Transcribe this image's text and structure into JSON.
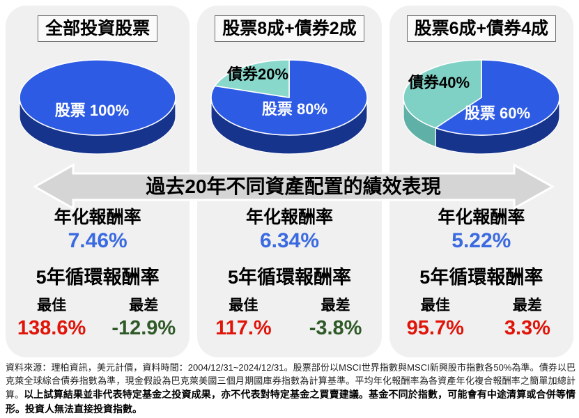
{
  "banner": {
    "label": "過去20年不同資產配置的績效表現",
    "fill": "#d5d5d5",
    "outline": "#ffffff"
  },
  "chart_data": [
    {
      "type": "pie",
      "title": "全部投資股票",
      "legend_position": "inside",
      "slices": [
        {
          "name": "股票",
          "label": "股票 100%",
          "value": 100,
          "color": "#2d5be4",
          "side_color": "#17348c",
          "label_color": "#ffffff",
          "label_x": 117,
          "label_y": 86
        }
      ],
      "stats": {
        "annualized_label": "年化報酬率",
        "annualized_value": "7.46%",
        "annualized_color": "#3a6ae0",
        "rolling_label": "5年循環報酬率",
        "best_label": "最佳",
        "worst_label": "最差",
        "best_value": "138.6%",
        "best_color": "#e01408",
        "worst_value": "-12.9%",
        "worst_color": "#2f5a28"
      }
    },
    {
      "type": "pie",
      "title": "股票8成+債券2成",
      "legend_position": "inside",
      "slices": [
        {
          "name": "股票",
          "label": "股票 80%",
          "value": 80,
          "color": "#2d5be4",
          "side_color": "#17348c",
          "label_color": "#ffffff",
          "label_x": 133,
          "label_y": 84
        },
        {
          "name": "債券",
          "label": "債券20%",
          "value": 20,
          "color": "#89d8cc",
          "side_color": "#5fb0a6",
          "label_color": "#000000",
          "label_x": 80,
          "label_y": 34
        }
      ],
      "stats": {
        "annualized_label": "年化報酬率",
        "annualized_value": "6.34%",
        "annualized_color": "#3a6ae0",
        "rolling_label": "5年循環報酬率",
        "best_label": "最佳",
        "worst_label": "最差",
        "best_value": "117.%",
        "best_color": "#e01408",
        "worst_value": "-3.8%",
        "worst_color": "#2f5a28"
      }
    },
    {
      "type": "pie",
      "title": "股票6成+債券4成",
      "legend_position": "inside",
      "slices": [
        {
          "name": "股票",
          "label": "股票 60%",
          "value": 60,
          "color": "#2d5be4",
          "side_color": "#17348c",
          "label_color": "#ffffff",
          "label_x": 148,
          "label_y": 90
        },
        {
          "name": "債券",
          "label": "債券40%",
          "value": 40,
          "color": "#7fd0c5",
          "side_color": "#5fb0a6",
          "label_color": "#000000",
          "label_x": 64,
          "label_y": 46
        }
      ],
      "stats": {
        "annualized_label": "年化報酬率",
        "annualized_value": "5.22%",
        "annualized_color": "#3a6ae0",
        "rolling_label": "5年循環報酬率",
        "best_label": "最佳",
        "worst_label": "最差",
        "best_value": "95.7%",
        "best_color": "#e01408",
        "worst_value": "3.3%",
        "worst_color": "#e01408"
      }
    }
  ],
  "footnote": {
    "regular": "資料來源：理柏資訊，美元計價，資料時間：2004/12/31~2024/12/31。股票部份以MSCI世界指數與MSCI新興股市指數各50%為準。債券以巴克萊全球綜合債券指數為準，現金假設為巴克萊美國三個月期國庫券指數為計算基準。平均年化報酬率為各資產年化複合報酬率之簡單加總計算。",
    "bold": "以上試算結果並非代表特定基金之投資成果，亦不代表對特定基金之買賣建議。基金不同於指數，可能會有中途清算或合併等情形。投資人無法直接投資指數。"
  }
}
